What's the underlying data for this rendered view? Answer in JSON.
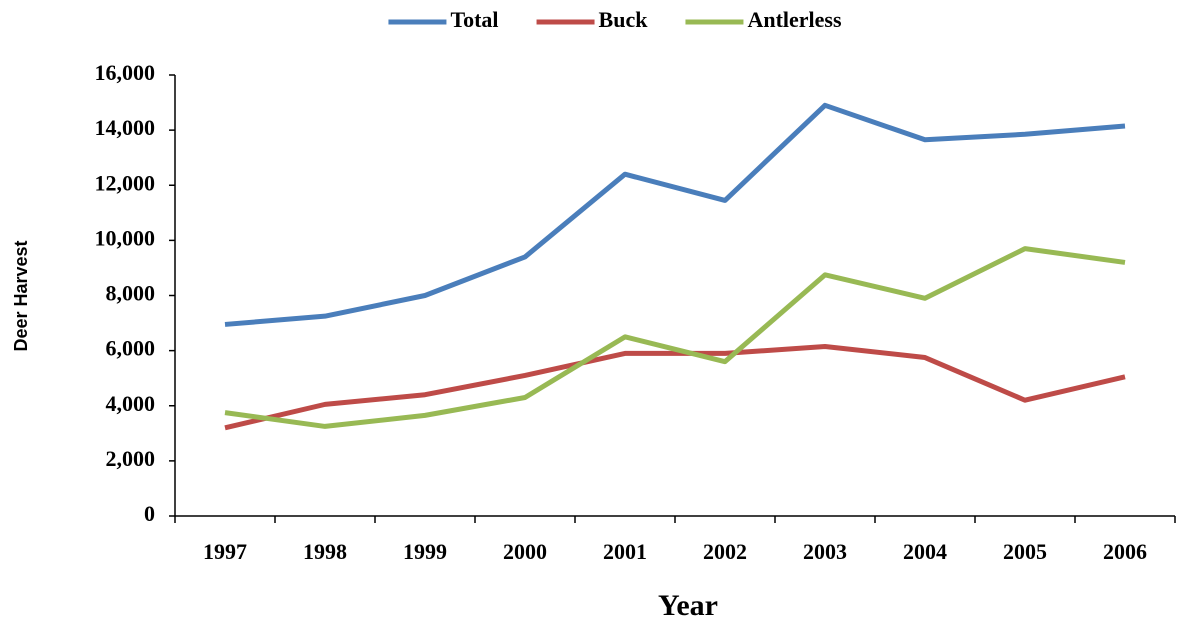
{
  "chart_data": {
    "type": "line",
    "categories": [
      "1997",
      "1998",
      "1999",
      "2000",
      "2001",
      "2002",
      "2003",
      "2004",
      "2005",
      "2006"
    ],
    "series": [
      {
        "name": "Total",
        "color": "#4a7ebb",
        "values": [
          6950,
          7250,
          8000,
          9400,
          12400,
          11450,
          14900,
          13650,
          13850,
          14150
        ]
      },
      {
        "name": "Buck",
        "color": "#be4b48",
        "values": [
          3200,
          4050,
          4400,
          5100,
          5900,
          5900,
          6150,
          5750,
          4200,
          5050
        ]
      },
      {
        "name": "Antlerless",
        "color": "#98b954",
        "values": [
          3750,
          3250,
          3650,
          4300,
          6500,
          5600,
          8750,
          7900,
          9700,
          9200
        ]
      }
    ],
    "ylim": [
      0,
      16000
    ],
    "yticks": [
      0,
      {
        "value": 2000,
        "label": "2,000"
      },
      {
        "value": 4000,
        "label": "4,000"
      },
      {
        "value": 6000,
        "label": "6,000"
      },
      {
        "value": 8000,
        "label": "8,000"
      },
      {
        "value": 10000,
        "label": "10,000"
      },
      {
        "value": 12000,
        "label": "12,000"
      },
      {
        "value": 14000,
        "label": "14,000"
      },
      {
        "value": 16000,
        "label": "16,000"
      }
    ],
    "y_label": "Deer Harvest",
    "x_label": "Year",
    "legend": "top",
    "grid": false
  }
}
